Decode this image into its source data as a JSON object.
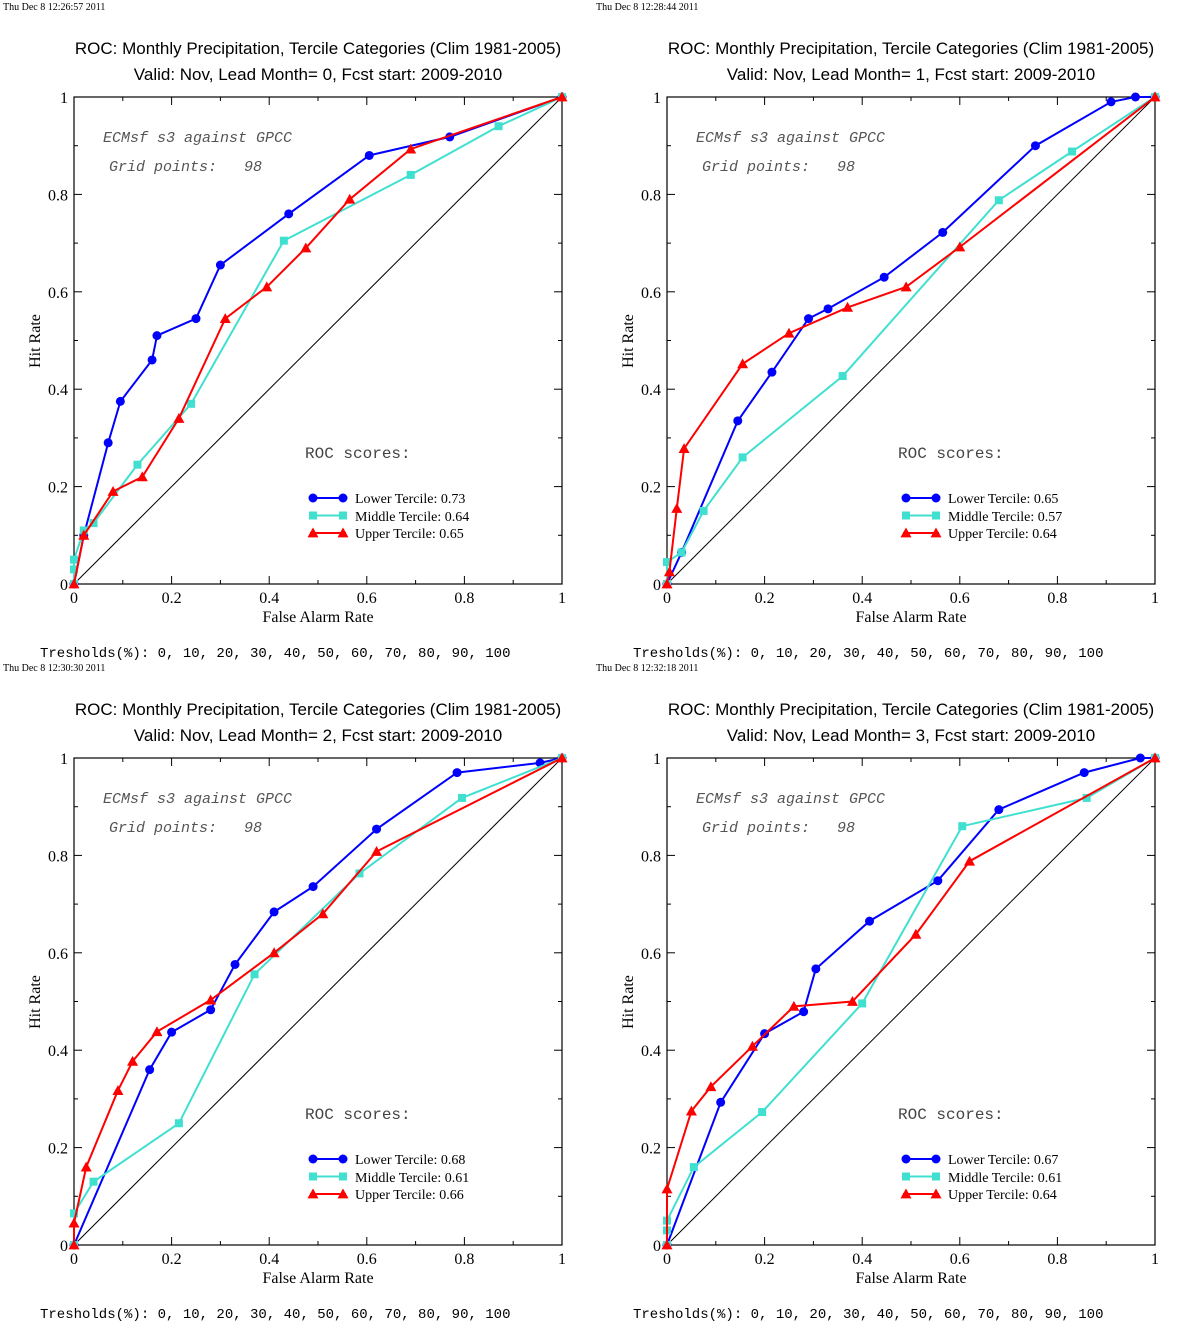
{
  "threshold_note": "Tresholds(%): 0, 10, 20, 30, 40, 50, 60, 70, 80, 90, 100",
  "chart_data": [
    {
      "type": "line",
      "timestamp": "Thu Dec  8 12:26:57 2011",
      "title": "ROC: Monthly Precipitation, Tercile Categories (Clim 1981-2005)",
      "subtitle": "Valid: Nov, Lead Month= 0, Fcst start: 2009-2010",
      "xlabel": "False Alarm Rate",
      "ylabel": "Hit Rate",
      "xlim": [
        0,
        1
      ],
      "ylim": [
        0,
        1
      ],
      "xticks": [
        "0",
        "0.2",
        "0.4",
        "0.6",
        "0.8",
        "1"
      ],
      "yticks": [
        "0",
        "0.2",
        "0.4",
        "0.6",
        "0.8",
        "1"
      ],
      "annotation_line1": "ECMsf s3 against GPCC",
      "annotation_line2": "Grid points:   98",
      "scores_heading": "ROC scores:",
      "legend_labels": [
        "Lower Tercile: 0.73",
        "Middle Tercile: 0.64",
        "Upper Tercile: 0.65"
      ],
      "series": [
        {
          "name": "Lower Tercile",
          "color": "#0000ff",
          "marker": "circle",
          "points": [
            [
              0,
              0
            ],
            [
              0.02,
              0.1
            ],
            [
              0.07,
              0.29
            ],
            [
              0.095,
              0.375
            ],
            [
              0.16,
              0.46
            ],
            [
              0.17,
              0.51
            ],
            [
              0.25,
              0.545
            ],
            [
              0.3,
              0.655
            ],
            [
              0.44,
              0.76
            ],
            [
              0.605,
              0.88
            ],
            [
              0.77,
              0.918
            ],
            [
              1,
              1
            ]
          ]
        },
        {
          "name": "Middle Tercile",
          "color": "#40e0d0",
          "marker": "square",
          "points": [
            [
              0,
              0
            ],
            [
              0,
              0.03
            ],
            [
              0,
              0.05
            ],
            [
              0.02,
              0.11
            ],
            [
              0.04,
              0.125
            ],
            [
              0.13,
              0.245
            ],
            [
              0.24,
              0.37
            ],
            [
              0.43,
              0.705
            ],
            [
              0.69,
              0.84
            ],
            [
              0.87,
              0.94
            ],
            [
              1,
              1
            ]
          ]
        },
        {
          "name": "Upper Tercile",
          "color": "#ff0000",
          "marker": "triangle",
          "points": [
            [
              0,
              0
            ],
            [
              0.02,
              0.1
            ],
            [
              0.08,
              0.19
            ],
            [
              0.14,
              0.22
            ],
            [
              0.215,
              0.34
            ],
            [
              0.31,
              0.545
            ],
            [
              0.395,
              0.61
            ],
            [
              0.475,
              0.69
            ],
            [
              0.565,
              0.79
            ],
            [
              0.69,
              0.893
            ],
            [
              1,
              1
            ]
          ]
        }
      ]
    },
    {
      "type": "line",
      "timestamp": "Thu Dec  8 12:28:44 2011",
      "title": "ROC: Monthly Precipitation, Tercile Categories (Clim 1981-2005)",
      "subtitle": "Valid: Nov, Lead Month= 1, Fcst start: 2009-2010",
      "xlabel": "False Alarm Rate",
      "ylabel": "Hit Rate",
      "xlim": [
        0,
        1
      ],
      "ylim": [
        0,
        1
      ],
      "xticks": [
        "0",
        "0.2",
        "0.4",
        "0.6",
        "0.8",
        "1"
      ],
      "yticks": [
        "0",
        "0.2",
        "0.4",
        "0.6",
        "0.8",
        "1"
      ],
      "annotation_line1": "ECMsf s3 against GPCC",
      "annotation_line2": "Grid points:   98",
      "scores_heading": "ROC scores:",
      "legend_labels": [
        "Lower Tercile: 0.65",
        "Middle Tercile: 0.57",
        "Upper Tercile: 0.64"
      ],
      "series": [
        {
          "name": "Lower Tercile",
          "color": "#0000ff",
          "marker": "circle",
          "points": [
            [
              0,
              0
            ],
            [
              0.03,
              0.065
            ],
            [
              0.145,
              0.335
            ],
            [
              0.215,
              0.435
            ],
            [
              0.29,
              0.545
            ],
            [
              0.33,
              0.565
            ],
            [
              0.445,
              0.63
            ],
            [
              0.565,
              0.722
            ],
            [
              0.755,
              0.9
            ],
            [
              0.91,
              0.99
            ],
            [
              0.96,
              1
            ],
            [
              1,
              1
            ]
          ]
        },
        {
          "name": "Middle Tercile",
          "color": "#40e0d0",
          "marker": "square",
          "points": [
            [
              0,
              0
            ],
            [
              0,
              0.045
            ],
            [
              0.03,
              0.065
            ],
            [
              0.075,
              0.15
            ],
            [
              0.155,
              0.26
            ],
            [
              0.36,
              0.427
            ],
            [
              0.68,
              0.788
            ],
            [
              0.83,
              0.888
            ],
            [
              1,
              1
            ]
          ]
        },
        {
          "name": "Upper Tercile",
          "color": "#ff0000",
          "marker": "triangle",
          "points": [
            [
              0,
              0
            ],
            [
              0.005,
              0.025
            ],
            [
              0.02,
              0.155
            ],
            [
              0.035,
              0.278
            ],
            [
              0.155,
              0.452
            ],
            [
              0.25,
              0.515
            ],
            [
              0.37,
              0.568
            ],
            [
              0.49,
              0.61
            ],
            [
              0.6,
              0.692
            ],
            [
              1,
              1
            ]
          ]
        }
      ]
    },
    {
      "type": "line",
      "timestamp": "Thu Dec  8 12:30:30 2011",
      "title": "ROC: Monthly Precipitation, Tercile Categories (Clim 1981-2005)",
      "subtitle": "Valid: Nov, Lead Month= 2, Fcst start: 2009-2010",
      "xlabel": "False Alarm Rate",
      "ylabel": "Hit Rate",
      "xlim": [
        0,
        1
      ],
      "ylim": [
        0,
        1
      ],
      "xticks": [
        "0",
        "0.2",
        "0.4",
        "0.6",
        "0.8",
        "1"
      ],
      "yticks": [
        "0",
        "0.2",
        "0.4",
        "0.6",
        "0.8",
        "1"
      ],
      "annotation_line1": "ECMsf s3 against GPCC",
      "annotation_line2": "Grid points:   98",
      "scores_heading": "ROC scores:",
      "legend_labels": [
        "Lower Tercile: 0.68",
        "Middle Tercile: 0.61",
        "Upper Tercile: 0.66"
      ],
      "series": [
        {
          "name": "Lower Tercile",
          "color": "#0000ff",
          "marker": "circle",
          "points": [
            [
              0,
              0
            ],
            [
              0.155,
              0.36
            ],
            [
              0.2,
              0.437
            ],
            [
              0.28,
              0.483
            ],
            [
              0.33,
              0.576
            ],
            [
              0.41,
              0.684
            ],
            [
              0.49,
              0.736
            ],
            [
              0.62,
              0.854
            ],
            [
              0.785,
              0.97
            ],
            [
              0.955,
              0.99
            ],
            [
              1,
              1
            ]
          ]
        },
        {
          "name": "Middle Tercile",
          "color": "#40e0d0",
          "marker": "square",
          "points": [
            [
              0,
              0
            ],
            [
              0,
              0.065
            ],
            [
              0.04,
              0.13
            ],
            [
              0.215,
              0.25
            ],
            [
              0.37,
              0.556
            ],
            [
              0.585,
              0.763
            ],
            [
              0.795,
              0.918
            ],
            [
              1,
              1
            ]
          ]
        },
        {
          "name": "Upper Tercile",
          "color": "#ff0000",
          "marker": "triangle",
          "points": [
            [
              0,
              0
            ],
            [
              0,
              0.045
            ],
            [
              0.025,
              0.16
            ],
            [
              0.09,
              0.317
            ],
            [
              0.12,
              0.377
            ],
            [
              0.17,
              0.438
            ],
            [
              0.28,
              0.503
            ],
            [
              0.41,
              0.6
            ],
            [
              0.51,
              0.68
            ],
            [
              0.62,
              0.808
            ],
            [
              1,
              1
            ]
          ]
        }
      ]
    },
    {
      "type": "line",
      "timestamp": "Thu Dec  8 12:32:18 2011",
      "title": "ROC: Monthly Precipitation, Tercile Categories (Clim 1981-2005)",
      "subtitle": "Valid: Nov, Lead Month= 3, Fcst start: 2009-2010",
      "xlabel": "False Alarm Rate",
      "ylabel": "Hit Rate",
      "xlim": [
        0,
        1
      ],
      "ylim": [
        0,
        1
      ],
      "xticks": [
        "0",
        "0.2",
        "0.4",
        "0.6",
        "0.8",
        "1"
      ],
      "yticks": [
        "0",
        "0.2",
        "0.4",
        "0.6",
        "0.8",
        "1"
      ],
      "annotation_line1": "ECMsf s3 against GPCC",
      "annotation_line2": "Grid points:   98",
      "scores_heading": "ROC scores:",
      "legend_labels": [
        "Lower Tercile: 0.67",
        "Middle Tercile: 0.61",
        "Upper Tercile: 0.64"
      ],
      "series": [
        {
          "name": "Lower Tercile",
          "color": "#0000ff",
          "marker": "circle",
          "points": [
            [
              0,
              0
            ],
            [
              0.11,
              0.293
            ],
            [
              0.2,
              0.434
            ],
            [
              0.28,
              0.479
            ],
            [
              0.305,
              0.567
            ],
            [
              0.415,
              0.665
            ],
            [
              0.555,
              0.748
            ],
            [
              0.68,
              0.894
            ],
            [
              0.855,
              0.97
            ],
            [
              0.97,
              1
            ],
            [
              1,
              1
            ]
          ]
        },
        {
          "name": "Middle Tercile",
          "color": "#40e0d0",
          "marker": "square",
          "points": [
            [
              0,
              0
            ],
            [
              0,
              0.03
            ],
            [
              0,
              0.05
            ],
            [
              0.055,
              0.16
            ],
            [
              0.195,
              0.273
            ],
            [
              0.4,
              0.496
            ],
            [
              0.605,
              0.86
            ],
            [
              0.86,
              0.918
            ],
            [
              1,
              1
            ]
          ]
        },
        {
          "name": "Upper Tercile",
          "color": "#ff0000",
          "marker": "triangle",
          "points": [
            [
              0,
              0
            ],
            [
              0,
              0.115
            ],
            [
              0.05,
              0.275
            ],
            [
              0.09,
              0.325
            ],
            [
              0.175,
              0.408
            ],
            [
              0.26,
              0.49
            ],
            [
              0.38,
              0.5
            ],
            [
              0.51,
              0.638
            ],
            [
              0.62,
              0.788
            ],
            [
              1,
              1
            ]
          ]
        }
      ]
    }
  ]
}
